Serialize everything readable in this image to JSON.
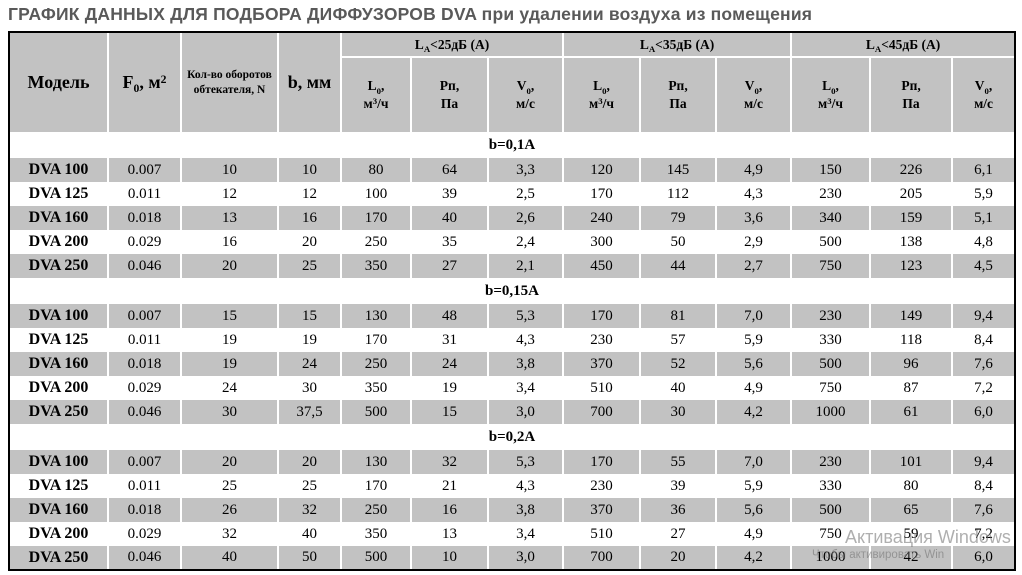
{
  "title": "ГРАФИК ДАННЫХ ДЛЯ ПОДБОРА ДИФФУЗОРОВ DVA при удалении воздуха из помещения",
  "colors": {
    "row_stripe": "#c2c2c2",
    "title_text": "#595959",
    "table_border": "#000000"
  },
  "watermark": {
    "line1": "Активация Windows",
    "line2": "Чтобы активировать Win"
  },
  "table": {
    "main_headers": [
      [
        "Модель"
      ],
      [
        "F",
        {
          "sub": "0"
        },
        ", м",
        {
          "sup": "2"
        }
      ],
      [
        "Кол-во оборотов обтекателя, N"
      ],
      [
        "b, мм"
      ]
    ],
    "groups": [
      {
        "label": [
          "L",
          {
            "sub": "A"
          },
          "<25дБ (А)"
        ]
      },
      {
        "label": [
          "L",
          {
            "sub": "A"
          },
          "<35дБ (А)"
        ]
      },
      {
        "label": [
          "L",
          {
            "sub": "A"
          },
          "<45дБ (А)"
        ]
      }
    ],
    "sub_headers": [
      {
        "line1": [
          "L",
          {
            "sub": "0"
          },
          ","
        ],
        "line2": [
          "м",
          {
            "sup": "3"
          },
          "/ч"
        ]
      },
      {
        "line1": [
          "Рп,"
        ],
        "line2": [
          "Па"
        ]
      },
      {
        "line1": [
          "V",
          {
            "sub": "0"
          },
          ","
        ],
        "line2": [
          "м/с"
        ]
      }
    ],
    "sections": [
      {
        "label": "b=0,1A",
        "rows": [
          {
            "model": "DVA 100",
            "values": [
              "0.007",
              "10",
              "10",
              "80",
              "64",
              "3,3",
              "120",
              "145",
              "4,9",
              "150",
              "226",
              "6,1"
            ]
          },
          {
            "model": "DVA 125",
            "values": [
              "0.011",
              "12",
              "12",
              "100",
              "39",
              "2,5",
              "170",
              "112",
              "4,3",
              "230",
              "205",
              "5,9"
            ]
          },
          {
            "model": "DVA 160",
            "values": [
              "0.018",
              "13",
              "16",
              "170",
              "40",
              "2,6",
              "240",
              "79",
              "3,6",
              "340",
              "159",
              "5,1"
            ]
          },
          {
            "model": "DVA 200",
            "values": [
              "0.029",
              "16",
              "20",
              "250",
              "35",
              "2,4",
              "300",
              "50",
              "2,9",
              "500",
              "138",
              "4,8"
            ]
          },
          {
            "model": "DVA 250",
            "values": [
              "0.046",
              "20",
              "25",
              "350",
              "27",
              "2,1",
              "450",
              "44",
              "2,7",
              "750",
              "123",
              "4,5"
            ]
          }
        ]
      },
      {
        "label": "b=0,15A",
        "rows": [
          {
            "model": "DVA 100",
            "values": [
              "0.007",
              "15",
              "15",
              "130",
              "48",
              "5,3",
              "170",
              "81",
              "7,0",
              "230",
              "149",
              "9,4"
            ]
          },
          {
            "model": "DVA 125",
            "values": [
              "0.011",
              "19",
              "19",
              "170",
              "31",
              "4,3",
              "230",
              "57",
              "5,9",
              "330",
              "118",
              "8,4"
            ]
          },
          {
            "model": "DVA 160",
            "values": [
              "0.018",
              "19",
              "24",
              "250",
              "24",
              "3,8",
              "370",
              "52",
              "5,6",
              "500",
              "96",
              "7,6"
            ]
          },
          {
            "model": "DVA 200",
            "values": [
              "0.029",
              "24",
              "30",
              "350",
              "19",
              "3,4",
              "510",
              "40",
              "4,9",
              "750",
              "87",
              "7,2"
            ]
          },
          {
            "model": "DVA 250",
            "values": [
              "0.046",
              "30",
              "37,5",
              "500",
              "15",
              "3,0",
              "700",
              "30",
              "4,2",
              "1000",
              "61",
              "6,0"
            ]
          }
        ]
      },
      {
        "label": "b=0,2A",
        "rows": [
          {
            "model": "DVA 100",
            "values": [
              "0.007",
              "20",
              "20",
              "130",
              "32",
              "5,3",
              "170",
              "55",
              "7,0",
              "230",
              "101",
              "9,4"
            ]
          },
          {
            "model": "DVA 125",
            "values": [
              "0.011",
              "25",
              "25",
              "170",
              "21",
              "4,3",
              "230",
              "39",
              "5,9",
              "330",
              "80",
              "8,4"
            ]
          },
          {
            "model": "DVA 160",
            "values": [
              "0.018",
              "26",
              "32",
              "250",
              "16",
              "3,8",
              "370",
              "36",
              "5,6",
              "500",
              "65",
              "7,6"
            ]
          },
          {
            "model": "DVA 200",
            "values": [
              "0.029",
              "32",
              "40",
              "350",
              "13",
              "3,4",
              "510",
              "27",
              "4,9",
              "750",
              "59",
              "7,2"
            ]
          },
          {
            "model": "DVA 250",
            "values": [
              "0.046",
              "40",
              "50",
              "500",
              "10",
              "3,0",
              "700",
              "20",
              "4,2",
              "1000",
              "42",
              "6,0"
            ]
          }
        ]
      }
    ]
  }
}
